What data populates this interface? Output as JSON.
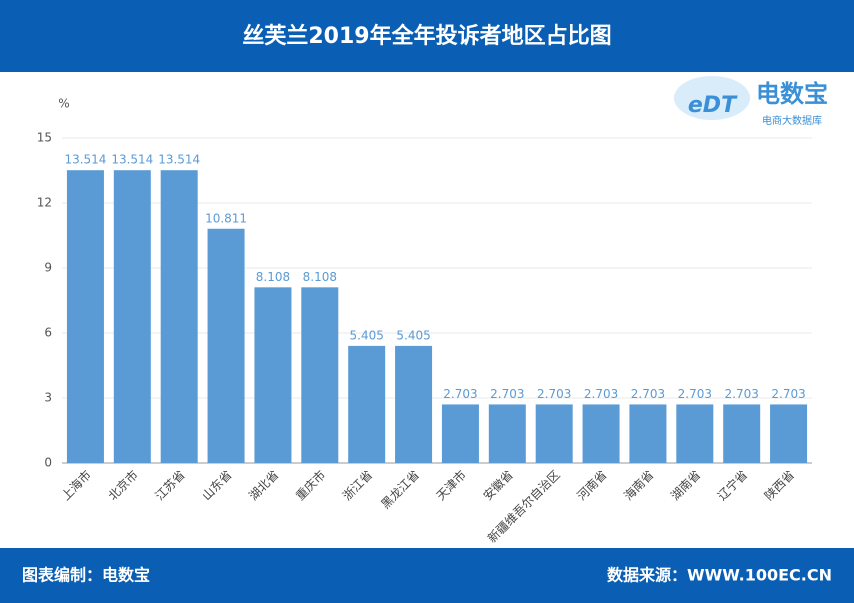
{
  "header": {
    "title": "丝芙兰2019年全年投诉者地区占比图"
  },
  "logo": {
    "mark": "eDT",
    "name": "电数宝",
    "tagline": "电商大数据库"
  },
  "chart_data": {
    "type": "bar",
    "y_label": "%",
    "categories": [
      "上海市",
      "北京市",
      "江苏省",
      "山东省",
      "湖北省",
      "重庆市",
      "浙江省",
      "黑龙江省",
      "天津市",
      "安徽省",
      "新疆维吾尔自治区",
      "河南省",
      "海南省",
      "湖南省",
      "辽宁省",
      "陕西省"
    ],
    "values": [
      13.514,
      13.514,
      13.514,
      10.811,
      8.108,
      8.108,
      5.405,
      5.405,
      2.703,
      2.703,
      2.703,
      2.703,
      2.703,
      2.703,
      2.703,
      2.703
    ],
    "color": "#5b9bd5",
    "ylim": [
      0,
      15
    ],
    "yticks": [
      0,
      3,
      6,
      9,
      12,
      15
    ],
    "grid": true
  },
  "footer": {
    "left": "图表编制：电数宝",
    "right": "数据来源：WWW.100EC.CN"
  }
}
